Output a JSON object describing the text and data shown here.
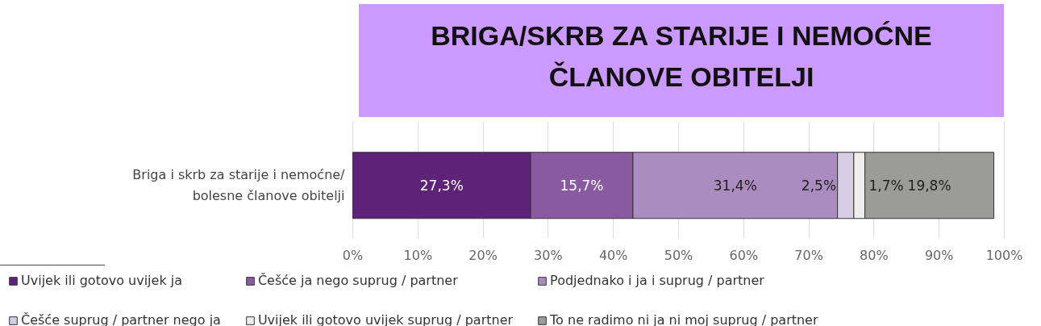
{
  "chart_data": {
    "type": "bar",
    "orientation": "horizontal",
    "stacked": true,
    "title": "BRIGA/SKRB ZA STARIJE I NEMOĆNE ČLANOVE OBITELJI",
    "categories": [
      "Briga i skrb za starije i nemoćne/ bolesne članove obitelji"
    ],
    "series": [
      {
        "name": "Uvijek ili gotovo uvijek ja",
        "color": "#5e2378",
        "values": [
          27.3
        ]
      },
      {
        "name": "Češće ja nego suprug / partner",
        "color": "#8a5aa0",
        "values": [
          15.7
        ]
      },
      {
        "name": "Podjednako i ja i suprug / partner",
        "color": "#ab8cc0",
        "values": [
          31.4
        ]
      },
      {
        "name": "Češće suprug / partner nego ja",
        "color": "#d8cce4",
        "values": [
          2.5
        ]
      },
      {
        "name": "Uvijek ili gotovo uvijek suprug / partner",
        "color": "#eeeeee",
        "values": [
          1.7
        ]
      },
      {
        "name": "To ne radimo ni ja ni moj suprug / partner",
        "color": "#9b9b98",
        "values": [
          19.8
        ]
      }
    ],
    "xlim": [
      0,
      100
    ],
    "xticks": [
      {
        "value": 0,
        "label": "0%"
      },
      {
        "value": 10,
        "label": "10%"
      },
      {
        "value": 20,
        "label": "20%"
      },
      {
        "value": 30,
        "label": "30%"
      },
      {
        "value": 40,
        "label": "40%"
      },
      {
        "value": 50,
        "label": "50%"
      },
      {
        "value": 60,
        "label": "60%"
      },
      {
        "value": 70,
        "label": "70%"
      },
      {
        "value": 80,
        "label": "80%"
      },
      {
        "value": 90,
        "label": "90%"
      },
      {
        "value": 100,
        "label": "100%"
      }
    ],
    "value_labels": [
      "27,3%",
      "15,7%",
      "31,4%",
      "2,5%",
      "1,7%",
      "19,8%"
    ],
    "grid": "x",
    "legend": "bottom"
  }
}
